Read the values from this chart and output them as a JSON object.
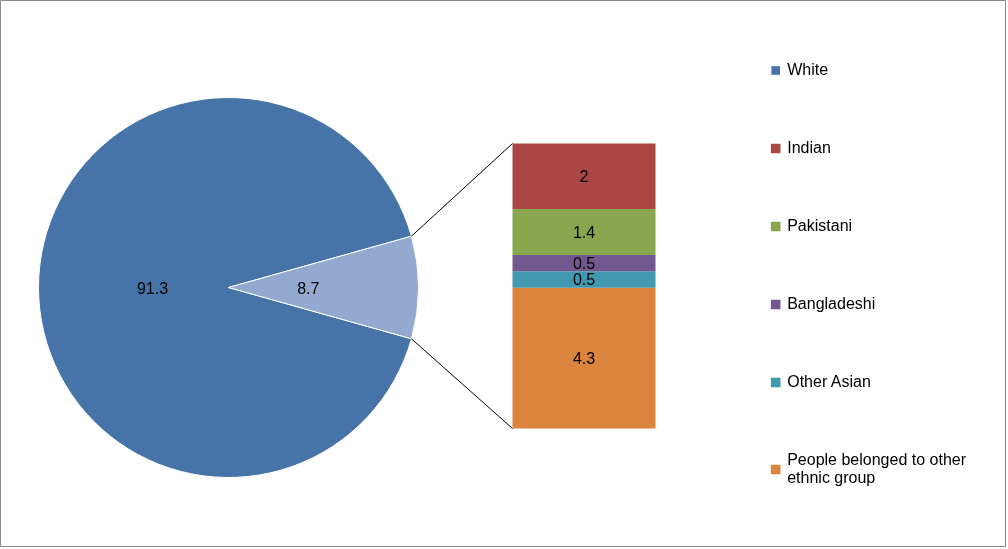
{
  "chart_data": [
    {
      "type": "pie",
      "categories": [
        "White",
        null
      ],
      "values": [
        91.3,
        8.7
      ],
      "colors": [
        "#4674a8",
        "#93a9cf"
      ],
      "data_labels": true,
      "legend": "right"
    },
    {
      "type": "bar",
      "stacked": true,
      "categories": [
        null
      ],
      "data_labels": true,
      "legend": "right",
      "series": [
        {
          "name": "People belonged to other ethnic group",
          "color": "#db843d",
          "values": [
            4.3
          ]
        },
        {
          "name": "Other Asian",
          "color": "#4198af",
          "values": [
            0.5
          ]
        },
        {
          "name": "Bangladeshi",
          "color": "#71588f",
          "values": [
            0.5
          ]
        },
        {
          "name": "Pakistani",
          "color": "#89a54e",
          "values": [
            1.4
          ]
        },
        {
          "name": "Indian",
          "color": "#aa4643",
          "values": [
            2
          ]
        }
      ]
    }
  ]
}
